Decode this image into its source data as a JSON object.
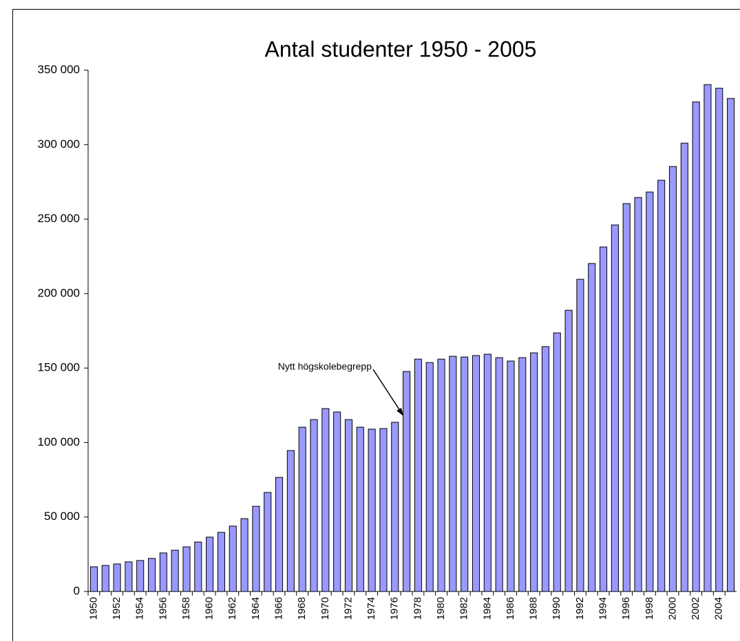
{
  "chart_data": {
    "type": "bar",
    "title": "Antal studenter 1950 - 2005",
    "categories": [
      "1950",
      null,
      "1952",
      null,
      "1954",
      null,
      "1956",
      null,
      "1958",
      null,
      "1960",
      null,
      "1962",
      null,
      "1964",
      null,
      "1966",
      null,
      "1968",
      null,
      "1970",
      null,
      "1972",
      null,
      "1974",
      null,
      "1976",
      null,
      "1978",
      null,
      "1980",
      null,
      "1982",
      null,
      "1984",
      null,
      "1986",
      null,
      "1988",
      null,
      "1990",
      null,
      "1992",
      null,
      "1994",
      null,
      "1996",
      null,
      "1998",
      null,
      "2000",
      null,
      "2002",
      null,
      "2004",
      null
    ],
    "values": [
      16600,
      17500,
      18500,
      19900,
      20800,
      22200,
      25900,
      27700,
      30000,
      33200,
      36500,
      39700,
      43900,
      48900,
      57200,
      66500,
      76600,
      94600,
      110300,
      115400,
      122800,
      120500,
      115400,
      110300,
      109000,
      109400,
      113600,
      147700,
      156000,
      153700,
      156000,
      157900,
      157400,
      158400,
      159300,
      157000,
      154700,
      157000,
      160200,
      164400,
      173600,
      188800,
      209600,
      220200,
      231300,
      246100,
      260400,
      264500,
      268200,
      276100,
      285300,
      301000,
      328700,
      340300,
      337900,
      331000
    ],
    "color": "#9999ff",
    "ylim": [
      0,
      350000
    ],
    "yticks": [
      0,
      {
        "value": 50000,
        "label": "50 000"
      },
      {
        "value": 100000,
        "label": "100 000"
      },
      {
        "value": 150000,
        "label": "150 000"
      },
      {
        "value": 200000,
        "label": "200 000"
      },
      {
        "value": 250000,
        "label": "250 000"
      },
      {
        "value": 300000,
        "label": "300 000"
      },
      {
        "value": 350000,
        "label": "350 000"
      }
    ],
    "grid": false,
    "annotation": "Nytt högskolebegrepp"
  }
}
